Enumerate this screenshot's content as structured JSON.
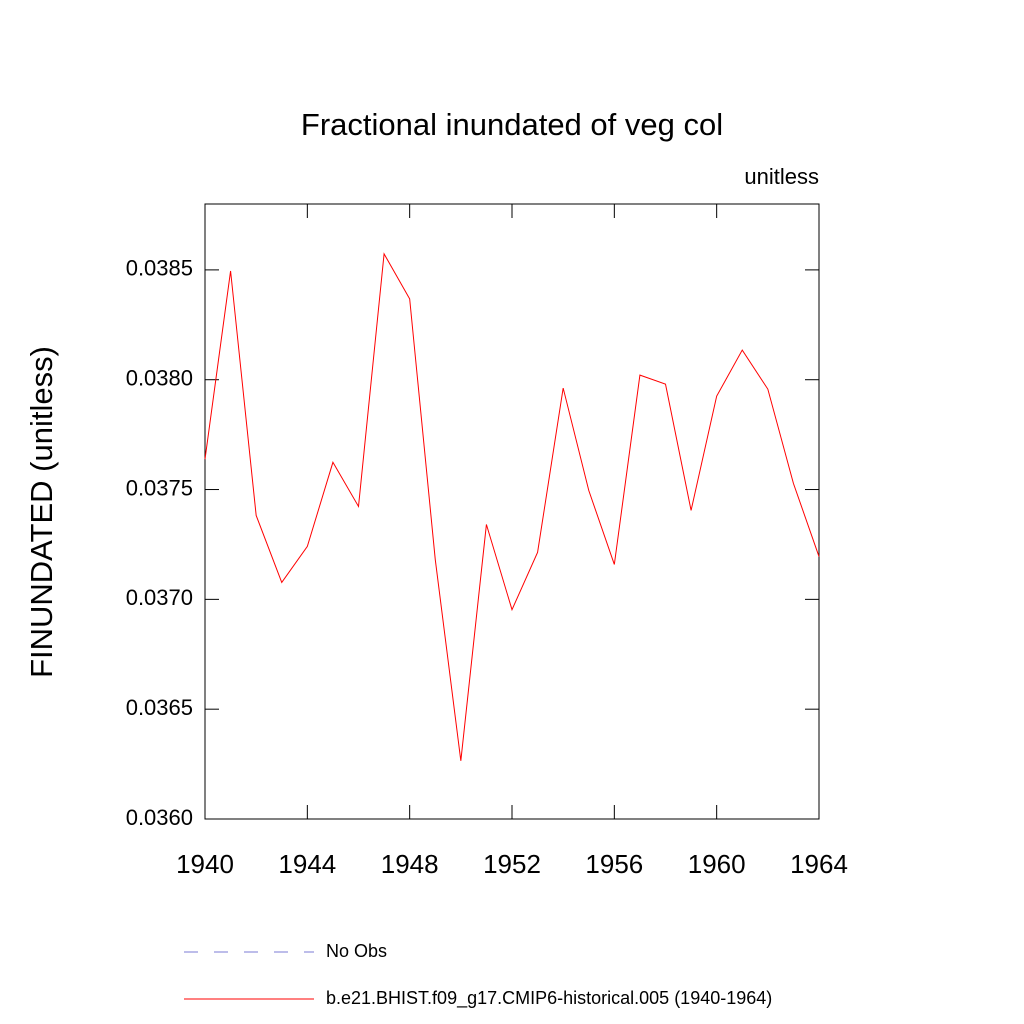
{
  "chart_data": {
    "type": "line",
    "title": "Fractional inundated of veg col",
    "subtitle": "unitless",
    "y_label": "FINUNDATED  (unitless)",
    "x": [
      1940,
      1941,
      1942,
      1943,
      1944,
      1945,
      1946,
      1947,
      1948,
      1949,
      1950,
      1951,
      1952,
      1953,
      1954,
      1955,
      1956,
      1957,
      1958,
      1959,
      1960,
      1961,
      1962,
      1963,
      1964
    ],
    "series": [
      {
        "name": "No Obs",
        "color": "#7b7bd6",
        "dash": "dashed",
        "values": [
          null,
          null,
          null,
          null,
          null,
          null,
          null,
          null,
          null,
          null,
          null,
          null,
          null,
          null,
          null,
          null,
          null,
          null,
          null,
          null,
          null,
          null,
          null,
          null,
          null
        ]
      },
      {
        "name": "b.e21.BHIST.f09_g17.CMIP6-historical.005 (1940-1964)",
        "color": "#ff0000",
        "dash": "solid",
        "values": [
          0.037638,
          0.038495,
          0.037382,
          0.037077,
          0.037241,
          0.037624,
          0.037423,
          0.038573,
          0.038368,
          0.037182,
          0.036265,
          0.037341,
          0.036953,
          0.037214,
          0.037962,
          0.037496,
          0.037159,
          0.038021,
          0.03798,
          0.037405,
          0.037925,
          0.038135,
          0.037957,
          0.037528,
          0.037195
        ]
      }
    ],
    "xlim": [
      1940,
      1964
    ],
    "xticks": [
      1940,
      1944,
      1948,
      1952,
      1956,
      1960,
      1964
    ],
    "ylim": [
      0.036,
      0.0388
    ],
    "yticks": [
      {
        "value": 0.036,
        "label": "0.0360"
      },
      0.0365,
      {
        "value": 0.037,
        "label": "0.0370"
      },
      0.0375,
      {
        "value": 0.038,
        "label": "0.0380"
      },
      0.0385
    ],
    "grid": false
  }
}
